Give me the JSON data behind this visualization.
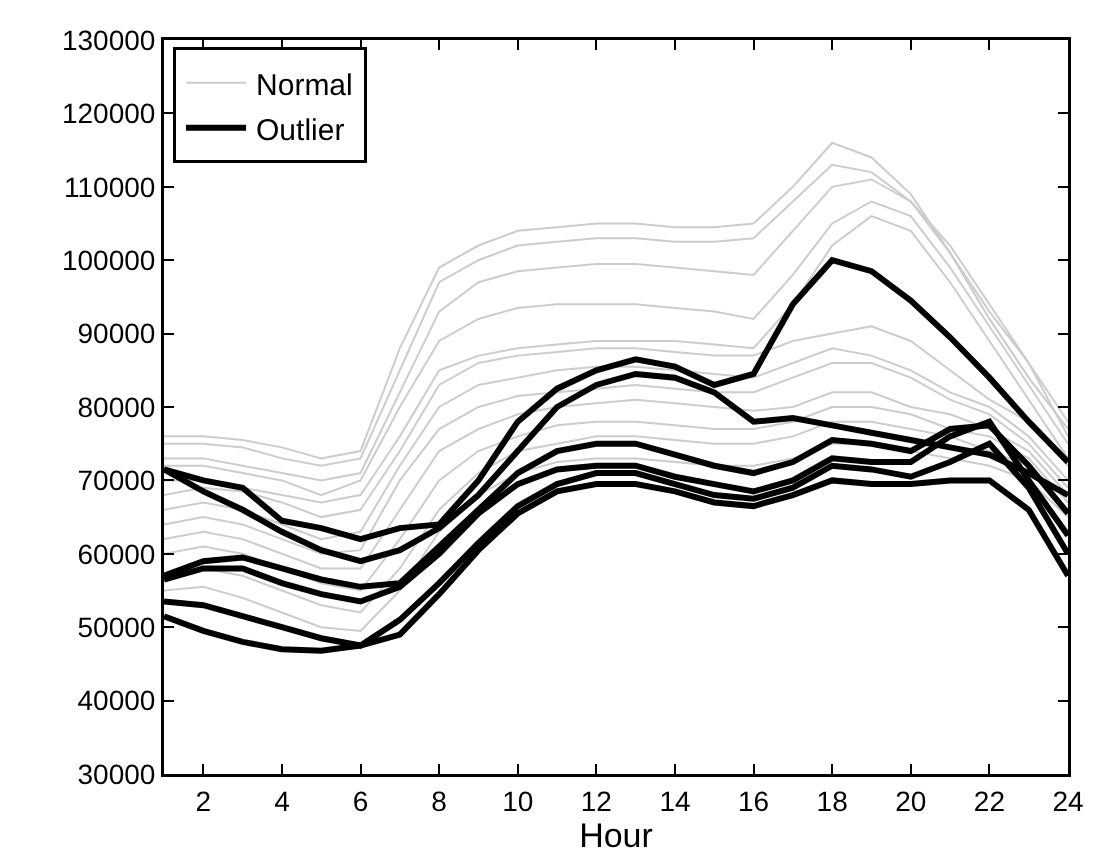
{
  "chart_data": {
    "type": "line",
    "xlabel": "Hour",
    "xlim": [
      1,
      24
    ],
    "xticks": [
      2,
      4,
      6,
      8,
      10,
      12,
      14,
      16,
      18,
      20,
      22,
      24
    ],
    "ylim": [
      30000,
      130000
    ],
    "yticks": [
      30000,
      40000,
      50000,
      60000,
      70000,
      80000,
      90000,
      100000,
      110000,
      120000,
      130000
    ],
    "x": [
      1,
      2,
      3,
      4,
      5,
      6,
      7,
      8,
      9,
      10,
      11,
      12,
      13,
      14,
      15,
      16,
      17,
      18,
      19,
      20,
      21,
      22,
      23,
      24
    ],
    "legend": "top left",
    "grid": false,
    "marker": "none",
    "line_style": "solid",
    "series": [
      {
        "name": "Normal",
        "color": "#cccccc",
        "values": [
          76000,
          76000,
          75500,
          74500,
          73000,
          74000,
          88000,
          99000,
          102000,
          104000,
          104500,
          105000,
          105000,
          104500,
          104500,
          105000,
          110000,
          116000,
          114000,
          109000,
          101000,
          92000,
          84000,
          77000
        ]
      },
      {
        "color": "#cccccc",
        "values": [
          75000,
          75000,
          74500,
          73000,
          72000,
          73000,
          85000,
          97000,
          100000,
          102000,
          102500,
          103000,
          103000,
          102500,
          102500,
          103000,
          108000,
          113000,
          112000,
          108000,
          101000,
          93000,
          86000,
          78000
        ]
      },
      {
        "color": "#cccccc",
        "values": [
          73000,
          73000,
          72000,
          71000,
          70000,
          71000,
          82000,
          93000,
          97000,
          98500,
          99000,
          99500,
          99500,
          99000,
          98500,
          98000,
          104000,
          110000,
          111000,
          108000,
          102000,
          94000,
          86000,
          76000
        ]
      },
      {
        "color": "#cccccc",
        "values": [
          72000,
          72000,
          71000,
          70000,
          68000,
          70000,
          80000,
          89000,
          92000,
          93500,
          94000,
          94000,
          94000,
          93500,
          93000,
          92000,
          98000,
          105000,
          108000,
          106000,
          99000,
          91000,
          83000,
          75000
        ]
      },
      {
        "color": "#cccccc",
        "values": [
          70000,
          70000,
          69000,
          68000,
          67000,
          68000,
          76000,
          85000,
          87000,
          88000,
          88500,
          89000,
          89000,
          89000,
          88500,
          88000,
          94000,
          102000,
          106000,
          104000,
          97000,
          89000,
          81000,
          73000
        ]
      },
      {
        "color": "#cccccc",
        "values": [
          68000,
          69000,
          68500,
          67000,
          65000,
          66000,
          74000,
          83000,
          86000,
          87000,
          87500,
          88000,
          88000,
          87500,
          87000,
          87000,
          89000,
          90000,
          91000,
          89000,
          85000,
          81000,
          78000,
          72000
        ]
      },
      {
        "color": "#cccccc",
        "values": [
          66000,
          67000,
          66000,
          64000,
          62000,
          63000,
          72000,
          80000,
          83000,
          84000,
          85000,
          85500,
          85500,
          85000,
          84500,
          84000,
          86000,
          88000,
          87000,
          85000,
          82000,
          80000,
          76000,
          70000
        ]
      },
      {
        "color": "#cccccc",
        "values": [
          64000,
          65000,
          64000,
          62000,
          60000,
          60500,
          70000,
          77000,
          80000,
          81500,
          82000,
          82500,
          83000,
          82500,
          82000,
          82000,
          84000,
          86000,
          86000,
          84000,
          81000,
          79000,
          75000,
          69000
        ]
      },
      {
        "color": "#cccccc",
        "values": [
          62000,
          63000,
          62000,
          60000,
          58000,
          58000,
          66000,
          74000,
          77000,
          79000,
          80000,
          80500,
          81000,
          80500,
          80000,
          79500,
          80000,
          82000,
          82000,
          80000,
          79000,
          77000,
          74000,
          68000
        ]
      },
      {
        "color": "#cccccc",
        "values": [
          60000,
          61000,
          60000,
          58000,
          56000,
          55000,
          62000,
          70000,
          74000,
          76000,
          77500,
          78000,
          78000,
          77500,
          77000,
          77000,
          78000,
          80000,
          80000,
          79000,
          77000,
          76000,
          73000,
          67000
        ]
      },
      {
        "color": "#cccccc",
        "values": [
          57000,
          58000,
          57000,
          55000,
          53000,
          52000,
          58000,
          66000,
          71000,
          74000,
          75000,
          76000,
          76000,
          75500,
          75000,
          75000,
          76000,
          78000,
          78000,
          77000,
          76000,
          74000,
          72000,
          66000
        ]
      },
      {
        "color": "#cccccc",
        "values": [
          55000,
          55500,
          54000,
          52000,
          50000,
          49500,
          55000,
          63000,
          68000,
          71000,
          72500,
          73000,
          73000,
          72500,
          72000,
          72000,
          73000,
          75000,
          75000,
          74000,
          73000,
          72000,
          70000,
          65000
        ]
      },
      {
        "name": "Outlier",
        "color": "#000000",
        "values": [
          71500,
          70000,
          69000,
          64500,
          63500,
          62000,
          63500,
          64000,
          70000,
          78000,
          82500,
          85000,
          86500,
          85500,
          83000,
          84500,
          94000,
          100000,
          98500,
          94500,
          89500,
          84000,
          78000,
          72500
        ]
      },
      {
        "color": "#000000",
        "values": [
          71500,
          68500,
          66000,
          63000,
          60500,
          59000,
          60500,
          63500,
          68000,
          74000,
          80000,
          83000,
          84500,
          84000,
          82000,
          78000,
          78500,
          77500,
          76500,
          75500,
          74500,
          73500,
          71000,
          68000
        ]
      },
      {
        "color": "#000000",
        "values": [
          57000,
          59000,
          59500,
          58000,
          56500,
          55500,
          56000,
          61000,
          66000,
          71000,
          74000,
          75000,
          75000,
          73500,
          72000,
          71000,
          72500,
          75500,
          75000,
          74000,
          77000,
          77500,
          72000,
          65500
        ]
      },
      {
        "color": "#000000",
        "values": [
          56500,
          58000,
          58000,
          56000,
          54500,
          53500,
          55500,
          60000,
          65500,
          69500,
          71500,
          72000,
          72000,
          70500,
          69500,
          68500,
          70000,
          73000,
          72500,
          72500,
          76000,
          78000,
          70000,
          62500
        ]
      },
      {
        "color": "#000000",
        "values": [
          53500,
          53000,
          51500,
          50000,
          48500,
          47500,
          51000,
          56000,
          61500,
          66500,
          69500,
          71000,
          71000,
          69500,
          68000,
          67500,
          69000,
          72000,
          71500,
          70500,
          72500,
          75000,
          69000,
          60000
        ]
      },
      {
        "color": "#000000",
        "values": [
          51500,
          49500,
          48000,
          47000,
          46800,
          47500,
          49000,
          54500,
          60500,
          65500,
          68500,
          69500,
          69500,
          68500,
          67000,
          66500,
          68000,
          70000,
          69500,
          69500,
          70000,
          70000,
          66000,
          57000
        ]
      }
    ]
  }
}
